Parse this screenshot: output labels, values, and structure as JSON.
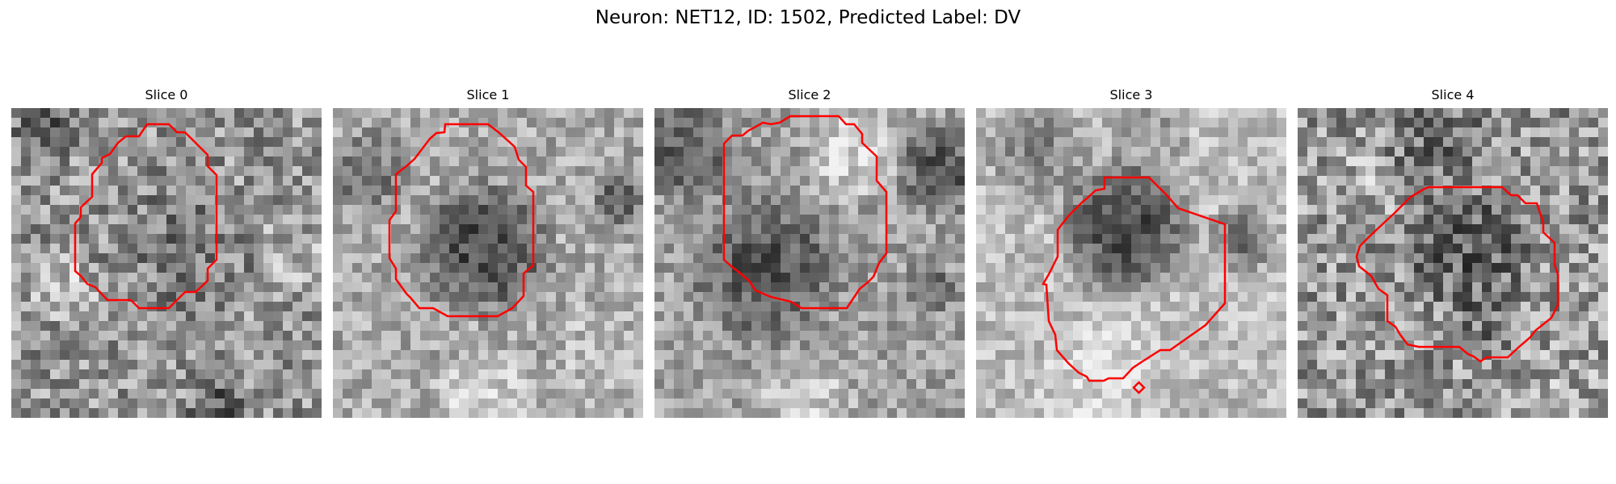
{
  "figure": {
    "title": "Neuron: NET12, ID: 1502, Predicted Label: DV"
  },
  "style": {
    "contour_color": "#ff0000",
    "colormap": "grayscale"
  },
  "slices": [
    {
      "title": "Slice 0"
    },
    {
      "title": "Slice 1"
    },
    {
      "title": "Slice 2"
    },
    {
      "title": "Slice 3"
    },
    {
      "title": "Slice 4"
    }
  ]
}
